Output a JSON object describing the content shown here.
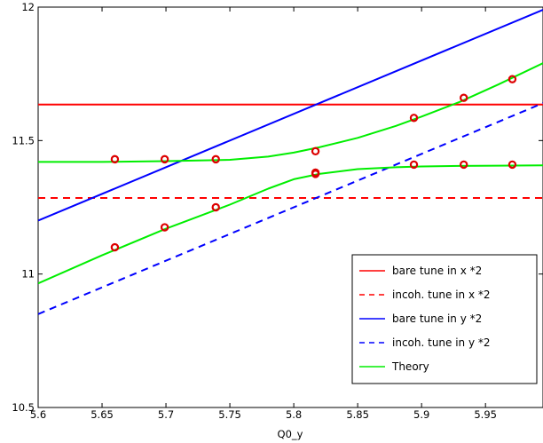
{
  "chart_data": {
    "type": "line",
    "title": "",
    "xlabel": "Q0_y",
    "ylabel": "",
    "xlim": [
      5.6,
      5.995
    ],
    "ylim": [
      10.5,
      12
    ],
    "xticks": [
      "5.6",
      "5.65",
      "5.7",
      "5.75",
      "5.8",
      "5.85",
      "5.9",
      "5.95"
    ],
    "yticks": [
      "10.5",
      "11",
      "11.5",
      "12"
    ],
    "grid": false,
    "legend_position": "bottom-right",
    "series": [
      {
        "name": "bare tune in x *2",
        "color": "#ff0000",
        "dash": "solid",
        "x": [
          5.6,
          5.995
        ],
        "y": [
          11.635,
          11.635
        ]
      },
      {
        "name": "incoh. tune in x *2",
        "color": "#ff0000",
        "dash": "dashed",
        "x": [
          5.6,
          5.995
        ],
        "y": [
          11.285,
          11.285
        ]
      },
      {
        "name": "bare tune in y *2",
        "color": "#0000ff",
        "dash": "solid",
        "x": [
          5.6,
          5.995
        ],
        "y": [
          11.2,
          11.99
        ]
      },
      {
        "name": "incoh. tune in y *2",
        "color": "#0000ff",
        "dash": "dashed",
        "x": [
          5.6,
          5.995
        ],
        "y": [
          10.85,
          11.64
        ]
      },
      {
        "name": "Theory",
        "color": "#00ee00",
        "dash": "solid",
        "x": [
          5.6,
          5.65,
          5.7,
          5.75,
          5.78,
          5.8,
          5.82,
          5.85,
          5.88,
          5.9,
          5.93,
          5.96,
          5.995
        ],
        "y": [
          11.42,
          11.42,
          11.423,
          11.428,
          11.44,
          11.455,
          11.475,
          11.51,
          11.555,
          11.59,
          11.645,
          11.71,
          11.79
        ]
      },
      {
        "name": "",
        "color": "#00ee00",
        "dash": "solid",
        "x": [
          5.6,
          5.65,
          5.7,
          5.75,
          5.78,
          5.8,
          5.82,
          5.85,
          5.88,
          5.9,
          5.93,
          5.96,
          5.995
        ],
        "y": [
          10.965,
          11.07,
          11.17,
          11.26,
          11.32,
          11.355,
          11.375,
          11.393,
          11.4,
          11.403,
          11.405,
          11.406,
          11.407
        ]
      }
    ],
    "markers": {
      "color": "#dd0000",
      "x": [
        5.66,
        5.66,
        5.699,
        5.699,
        5.739,
        5.739,
        5.817,
        5.817,
        5.817,
        5.894,
        5.894,
        5.933,
        5.933,
        5.971,
        5.971
      ],
      "y": [
        11.43,
        11.1,
        11.43,
        11.175,
        11.43,
        11.25,
        11.46,
        11.38,
        11.375,
        11.585,
        11.41,
        11.66,
        11.41,
        11.73,
        11.41
      ]
    }
  }
}
